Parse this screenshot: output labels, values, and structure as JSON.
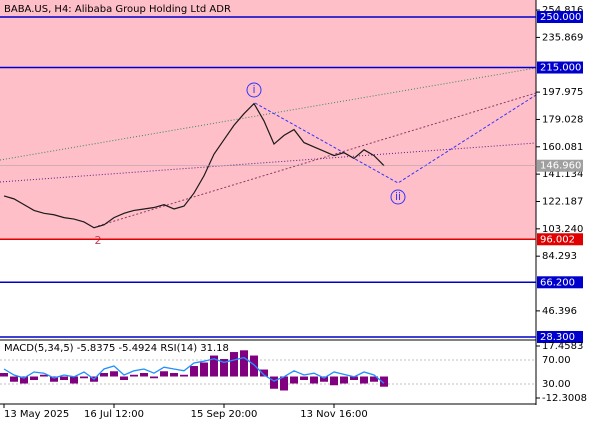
{
  "chart_data": [
    {
      "type": "line",
      "title": "BABA.US, H4:  Alibaba Group Holding Ltd ADR",
      "categories": [
        "13 May 2025",
        null,
        null,
        null,
        null,
        null,
        null,
        null,
        null,
        null,
        null,
        "16 Jul 12:00",
        null,
        null,
        null,
        null,
        null,
        null,
        null,
        null,
        null,
        null,
        "15 Sep 20:00",
        null,
        null,
        null,
        null,
        null,
        null,
        null,
        null,
        null,
        null,
        "13 Nov 16:00",
        null,
        null,
        null,
        null,
        null
      ],
      "values": [
        126,
        124,
        120,
        116,
        114,
        113,
        111,
        110,
        108,
        104,
        106,
        111,
        114,
        116,
        117,
        118,
        120,
        117,
        119,
        128,
        140,
        155,
        165,
        175,
        183,
        190,
        178,
        162,
        168,
        172,
        163,
        160,
        157,
        154,
        156,
        152,
        158,
        154,
        147
      ],
      "color": "#1a1a1a",
      "ylim": [
        27.6,
        260.4
      ],
      "yticks": [
        254.816,
        235.869,
        197.975,
        179.028,
        160.081,
        141.134,
        122.187,
        {
          "value": 103.24,
          "label": "103.240"
        },
        84.293,
        46.396
      ],
      "levels": [
        {
          "value": 250,
          "label": "250.000",
          "color": "#0000cc"
        },
        {
          "value": 215,
          "label": "215.000",
          "color": "#0000cc"
        },
        {
          "value": 96.002,
          "label": "96.002",
          "color": "#e00000"
        },
        {
          "value": 66.2,
          "label": "66.200",
          "color": "#0000cc"
        },
        {
          "value": 28.3,
          "label": "28.300",
          "color": "#0000cc"
        }
      ],
      "current_price": {
        "value": 146.96,
        "label": "146.960"
      },
      "zone_color": "#ffbfc8",
      "annotations": [
        "i",
        "ii",
        "2"
      ]
    },
    {
      "type": "macd",
      "title": "MACD(5,34,5) -5.8375 -5.4924 RSI(14) 31.18",
      "series": [
        {
          "color": "#800080",
          "values": [
            2,
            -3,
            -4,
            -2,
            1,
            -3,
            -2,
            -4,
            -1,
            -3,
            2,
            3,
            -2,
            1,
            2,
            -1,
            3,
            2,
            1,
            6,
            8,
            12,
            10,
            14,
            15,
            12,
            4,
            -7,
            -8,
            -4,
            -2,
            -4,
            -3,
            -5,
            -4,
            -2,
            -4,
            -3,
            -5.8375
          ]
        },
        {
          "color": "#1e90ff",
          "axis": "y2",
          "values": [
            55,
            45,
            40,
            50,
            48,
            40,
            45,
            42,
            50,
            38,
            55,
            60,
            45,
            52,
            55,
            48,
            58,
            55,
            52,
            65,
            68,
            72,
            66,
            70,
            74,
            62,
            45,
            35,
            42,
            52,
            45,
            48,
            40,
            50,
            46,
            42,
            50,
            45,
            31.18
          ]
        }
      ],
      "ylim": [
        -14.59,
        19.75
      ],
      "yticks": [
        17.4583,
        -12.3008
      ],
      "y2lim": [
        0,
        100
      ],
      "y2ticks": [
        {
          "value": 70,
          "label": "70.00"
        },
        {
          "value": 30,
          "label": "30.00"
        }
      ]
    }
  ]
}
